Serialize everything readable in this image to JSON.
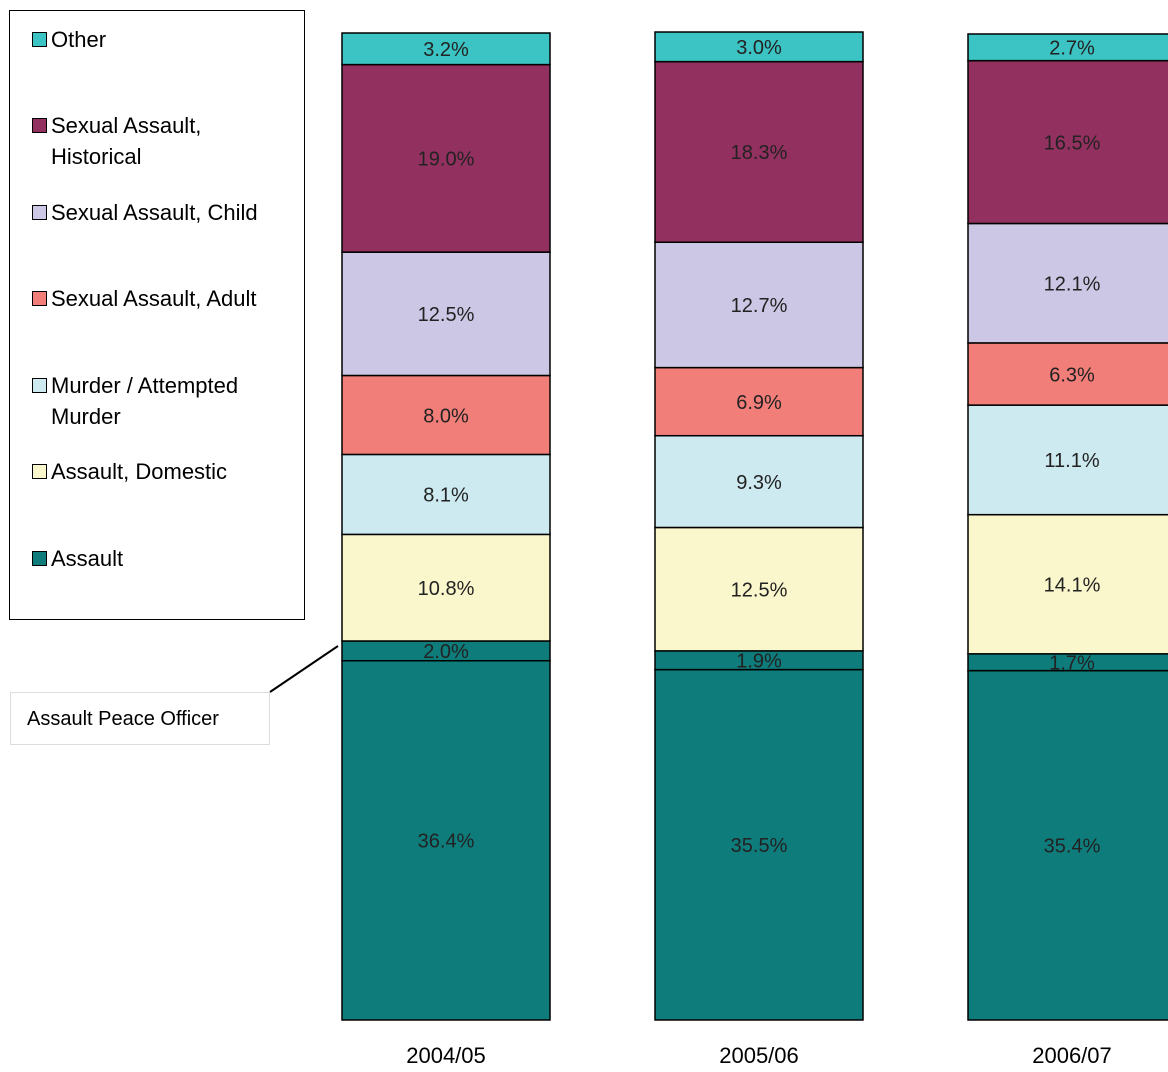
{
  "chart_data": {
    "type": "stacked_bar",
    "categories": [
      "2004/05",
      "2005/06",
      "2006/07"
    ],
    "ylim": [
      0,
      100
    ],
    "annotation": "Assault Peace Officer",
    "series": [
      {
        "name": "Assault",
        "color": "#0e7c7b",
        "values": [
          36.4,
          35.5,
          35.4
        ],
        "value_labels": [
          "36.4%",
          "35.5%",
          "35.4%"
        ]
      },
      {
        "color": "#0e7c7b",
        "values": [
          2.0,
          1.9,
          1.7
        ],
        "value_labels": [
          "2.0%",
          "1.9%",
          "1.7%"
        ]
      },
      {
        "name": "Assault, Domestic",
        "color": "#fbf7cc",
        "values": [
          10.8,
          12.5,
          14.1
        ],
        "value_labels": [
          "10.8%",
          "12.5%",
          "14.1%"
        ]
      },
      {
        "name": "Murder / Attempted Murder",
        "color": "#cdeaf0",
        "values": [
          8.1,
          9.3,
          11.1
        ],
        "value_labels": [
          "8.1%",
          "9.3%",
          "11.1%"
        ]
      },
      {
        "name": "Sexual Assault, Adult",
        "color": "#f27e7a",
        "values": [
          8.0,
          6.9,
          6.3
        ],
        "value_labels": [
          "8.0%",
          "6.9%",
          "6.3%"
        ]
      },
      {
        "name": "Sexual Assault, Child",
        "color": "#cbc7e4",
        "values": [
          12.5,
          12.7,
          12.1
        ],
        "value_labels": [
          "12.5%",
          "12.7%",
          "12.1%"
        ]
      },
      {
        "name": "Sexual Assault, Historical",
        "color": "#92305f",
        "values": [
          19.0,
          18.3,
          16.5
        ],
        "value_labels": [
          "19.0%",
          "18.3%",
          "16.5%"
        ]
      },
      {
        "name": "Other",
        "color": "#3cc3c3",
        "values": [
          3.2,
          3.0,
          2.7
        ],
        "value_labels": [
          "3.2%",
          "3.0%",
          "2.7%"
        ]
      }
    ]
  }
}
